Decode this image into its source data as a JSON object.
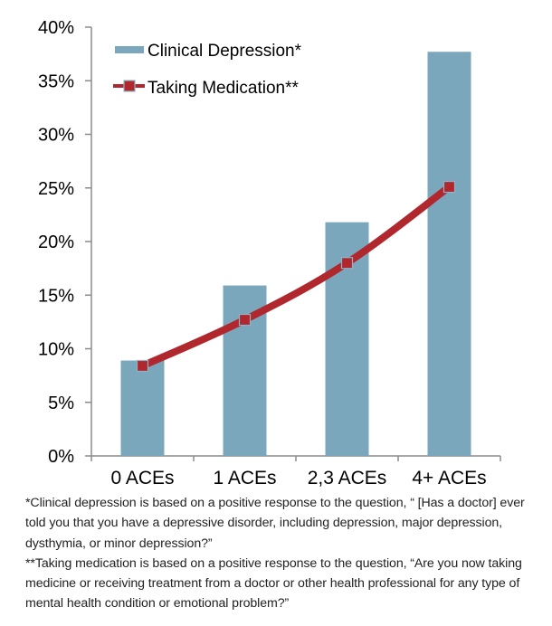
{
  "chart_data": {
    "type": "bar",
    "title": "",
    "xlabel": "",
    "ylabel": "",
    "categories": [
      "0 ACEs",
      "1 ACEs",
      "2,3 ACEs",
      "4+ ACEs"
    ],
    "ylim": [
      0,
      40
    ],
    "yticks": [
      0,
      5,
      10,
      15,
      20,
      25,
      30,
      35,
      40
    ],
    "ytick_labels": [
      "0%",
      "5%",
      "10%",
      "15%",
      "20%",
      "25%",
      "30%",
      "35%",
      "40%"
    ],
    "grid": false,
    "legend_position": "top-left",
    "series": [
      {
        "name": "Clinical Depression*",
        "type": "bar",
        "color": "#7BA7BD",
        "values": [
          8.9,
          15.9,
          21.8,
          37.7
        ]
      },
      {
        "name": "Taking Medication**",
        "type": "line",
        "color": "#B0272E",
        "marker": "square",
        "values": [
          8.4,
          12.7,
          18.0,
          25.1
        ]
      }
    ]
  },
  "footnotes": [
    "*Clinical depression is based on a positive response to the question, “ [Has a doctor] ever told you that you have a depressive disorder, including depression, major depression, dysthymia, or minor depression?”",
    "**Taking medication is based on a positive response to the question, “Are you now taking medicine or receiving treatment from a doctor or other health professional for any type of mental health condition or emotional problem?”"
  ]
}
